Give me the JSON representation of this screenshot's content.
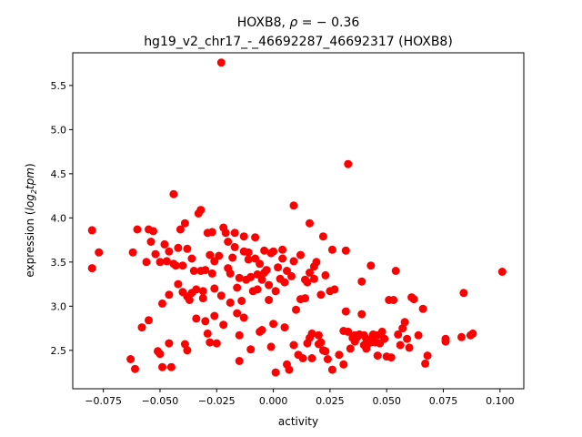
{
  "chart_data": {
    "type": "scatter",
    "title_line1_prefix": "HOXB8, ",
    "title_line1_rho": "ρ",
    "title_line1_suffix": " = − 0.36",
    "title_line2": "hg19_v2_chr17_-_46692287_46692317 (HOXB8)",
    "xlabel": "activity",
    "ylabel_prefix": "expression (",
    "ylabel_log": "log",
    "ylabel_sub": "2",
    "ylabel_tpm": "tpm",
    "ylabel_suffix": ")",
    "xlim": [
      -0.0885,
      0.1105
    ],
    "ylim": [
      2.065,
      5.87
    ],
    "xticks": [
      -0.075,
      -0.05,
      -0.025,
      0.0,
      0.025,
      0.05,
      0.075,
      0.1
    ],
    "xtick_labels": [
      "−0.075",
      "−0.050",
      "−0.025",
      "0.000",
      "0.025",
      "0.050",
      "0.075",
      "0.100"
    ],
    "yticks": [
      2.5,
      3.0,
      3.5,
      4.0,
      4.5,
      5.0,
      5.5
    ],
    "ytick_labels": [
      "2.5",
      "3.0",
      "3.5",
      "4.0",
      "4.5",
      "5.0",
      "5.5"
    ],
    "grid": false,
    "marker_color": "#ff0000",
    "points": [
      [
        -0.08,
        3.86
      ],
      [
        -0.08,
        3.43
      ],
      [
        -0.077,
        3.61
      ],
      [
        -0.063,
        2.4
      ],
      [
        -0.061,
        2.29
      ],
      [
        -0.062,
        3.61
      ],
      [
        -0.06,
        3.87
      ],
      [
        -0.058,
        2.76
      ],
      [
        -0.056,
        3.5
      ],
      [
        -0.055,
        2.84
      ],
      [
        -0.055,
        3.87
      ],
      [
        -0.054,
        3.73
      ],
      [
        -0.053,
        3.85
      ],
      [
        -0.052,
        3.59
      ],
      [
        -0.051,
        2.49
      ],
      [
        -0.05,
        2.46
      ],
      [
        -0.05,
        3.5
      ],
      [
        -0.049,
        2.31
      ],
      [
        -0.049,
        3.03
      ],
      [
        -0.048,
        3.7
      ],
      [
        -0.047,
        3.51
      ],
      [
        -0.046,
        3.62
      ],
      [
        -0.046,
        3.13
      ],
      [
        -0.046,
        2.58
      ],
      [
        -0.045,
        2.31
      ],
      [
        -0.044,
        4.27
      ],
      [
        -0.044,
        3.48
      ],
      [
        -0.043,
        3.46
      ],
      [
        -0.042,
        3.25
      ],
      [
        -0.042,
        3.66
      ],
      [
        -0.041,
        3.87
      ],
      [
        -0.04,
        3.16
      ],
      [
        -0.04,
        3.46
      ],
      [
        -0.039,
        3.94
      ],
      [
        -0.039,
        2.57
      ],
      [
        -0.038,
        2.5
      ],
      [
        -0.038,
        3.11
      ],
      [
        -0.038,
        3.65
      ],
      [
        -0.037,
        3.07
      ],
      [
        -0.036,
        3.54
      ],
      [
        -0.036,
        3.15
      ],
      [
        -0.035,
        3.4
      ],
      [
        -0.034,
        2.86
      ],
      [
        -0.034,
        3.19
      ],
      [
        -0.033,
        4.05
      ],
      [
        -0.032,
        4.09
      ],
      [
        -0.032,
        3.4
      ],
      [
        -0.031,
        3.17
      ],
      [
        -0.031,
        3.09
      ],
      [
        -0.03,
        3.41
      ],
      [
        -0.03,
        2.83
      ],
      [
        -0.029,
        3.83
      ],
      [
        -0.029,
        2.69
      ],
      [
        -0.028,
        3.58
      ],
      [
        -0.028,
        2.59
      ],
      [
        -0.027,
        3.84
      ],
      [
        -0.027,
        3.37
      ],
      [
        -0.026,
        3.2
      ],
      [
        -0.026,
        3.51
      ],
      [
        -0.026,
        2.89
      ],
      [
        -0.025,
        2.58
      ],
      [
        -0.024,
        3.57
      ],
      [
        -0.023,
        5.76
      ],
      [
        -0.023,
        3.12
      ],
      [
        -0.022,
        3.89
      ],
      [
        -0.022,
        2.79
      ],
      [
        -0.021,
        3.83
      ],
      [
        -0.02,
        3.43
      ],
      [
        -0.02,
        3.73
      ],
      [
        -0.019,
        3.37
      ],
      [
        -0.019,
        3.04
      ],
      [
        -0.018,
        3.55
      ],
      [
        -0.017,
        3.83
      ],
      [
        -0.017,
        3.67
      ],
      [
        -0.016,
        3.21
      ],
      [
        -0.016,
        2.92
      ],
      [
        -0.015,
        3.32
      ],
      [
        -0.015,
        2.67
      ],
      [
        -0.015,
        2.38
      ],
      [
        -0.014,
        3.06
      ],
      [
        -0.013,
        3.79
      ],
      [
        -0.013,
        3.62
      ],
      [
        -0.013,
        2.87
      ],
      [
        -0.012,
        3.3
      ],
      [
        -0.011,
        3.53
      ],
      [
        -0.011,
        3.61
      ],
      [
        -0.01,
        2.51
      ],
      [
        -0.01,
        3.33
      ],
      [
        -0.009,
        3.17
      ],
      [
        -0.008,
        3.78
      ],
      [
        -0.008,
        3.54
      ],
      [
        -0.007,
        3.19
      ],
      [
        -0.007,
        3.36
      ],
      [
        -0.006,
        2.71
      ],
      [
        -0.006,
        3.48
      ],
      [
        -0.005,
        2.73
      ],
      [
        -0.005,
        3.3
      ],
      [
        -0.004,
        3.63
      ],
      [
        -0.004,
        3.38
      ],
      [
        -0.003,
        3.41
      ],
      [
        -0.002,
        3.24
      ],
      [
        -0.002,
        3.07
      ],
      [
        -0.001,
        2.54
      ],
      [
        -0.001,
        3.6
      ],
      [
        0.0,
        3.62
      ],
      [
        0.0,
        2.8
      ],
      [
        0.001,
        2.25
      ],
      [
        0.001,
        3.17
      ],
      [
        0.002,
        3.44
      ],
      [
        0.003,
        3.31
      ],
      [
        0.004,
        3.64
      ],
      [
        0.004,
        3.54
      ],
      [
        0.005,
        2.76
      ],
      [
        0.005,
        3.27
      ],
      [
        0.006,
        3.4
      ],
      [
        0.006,
        2.34
      ],
      [
        0.007,
        2.28
      ],
      [
        0.008,
        3.34
      ],
      [
        0.009,
        3.51
      ],
      [
        0.009,
        2.56
      ],
      [
        0.009,
        4.14
      ],
      [
        0.01,
        2.96
      ],
      [
        0.011,
        2.45
      ],
      [
        0.012,
        3.58
      ],
      [
        0.012,
        3.08
      ],
      [
        0.013,
        2.41
      ],
      [
        0.014,
        3.09
      ],
      [
        0.014,
        3.3
      ],
      [
        0.015,
        2.58
      ],
      [
        0.015,
        3.27
      ],
      [
        0.016,
        2.64
      ],
      [
        0.016,
        3.94
      ],
      [
        0.016,
        3.38
      ],
      [
        0.017,
        2.69
      ],
      [
        0.017,
        2.41
      ],
      [
        0.018,
        3.45
      ],
      [
        0.018,
        3.31
      ],
      [
        0.019,
        3.5
      ],
      [
        0.02,
        2.57
      ],
      [
        0.02,
        2.67
      ],
      [
        0.021,
        3.13
      ],
      [
        0.021,
        2.59
      ],
      [
        0.022,
        3.79
      ],
      [
        0.022,
        2.5
      ],
      [
        0.023,
        3.35
      ],
      [
        0.023,
        2.49
      ],
      [
        0.024,
        2.4
      ],
      [
        0.025,
        3.17
      ],
      [
        0.026,
        2.28
      ],
      [
        0.026,
        3.64
      ],
      [
        0.027,
        3.19
      ],
      [
        0.029,
        2.45
      ],
      [
        0.031,
        2.72
      ],
      [
        0.031,
        2.34
      ],
      [
        0.032,
        2.94
      ],
      [
        0.032,
        3.63
      ],
      [
        0.033,
        4.61
      ],
      [
        0.033,
        2.71
      ],
      [
        0.034,
        2.52
      ],
      [
        0.035,
        2.64
      ],
      [
        0.036,
        2.67
      ],
      [
        0.036,
        2.6
      ],
      [
        0.037,
        2.65
      ],
      [
        0.038,
        2.68
      ],
      [
        0.039,
        2.91
      ],
      [
        0.039,
        3.28
      ],
      [
        0.04,
        2.56
      ],
      [
        0.04,
        2.67
      ],
      [
        0.041,
        2.63
      ],
      [
        0.041,
        2.52
      ],
      [
        0.042,
        2.58
      ],
      [
        0.043,
        3.46
      ],
      [
        0.043,
        2.59
      ],
      [
        0.044,
        2.63
      ],
      [
        0.044,
        2.68
      ],
      [
        0.045,
        2.59
      ],
      [
        0.046,
        2.44
      ],
      [
        0.046,
        2.67
      ],
      [
        0.047,
        2.58
      ],
      [
        0.048,
        2.71
      ],
      [
        0.049,
        2.63
      ],
      [
        0.05,
        2.43
      ],
      [
        0.051,
        3.07
      ],
      [
        0.052,
        2.42
      ],
      [
        0.053,
        3.07
      ],
      [
        0.054,
        3.4
      ],
      [
        0.055,
        2.68
      ],
      [
        0.056,
        2.56
      ],
      [
        0.057,
        2.75
      ],
      [
        0.058,
        2.82
      ],
      [
        0.059,
        2.63
      ],
      [
        0.06,
        2.53
      ],
      [
        0.061,
        3.1
      ],
      [
        0.062,
        3.08
      ],
      [
        0.064,
        2.67
      ],
      [
        0.066,
        2.97
      ],
      [
        0.067,
        2.35
      ],
      [
        0.068,
        2.44
      ],
      [
        0.076,
        2.6
      ],
      [
        0.076,
        2.63
      ],
      [
        0.083,
        2.65
      ],
      [
        0.084,
        3.15
      ],
      [
        0.087,
        2.67
      ],
      [
        0.088,
        2.69
      ],
      [
        0.101,
        3.39
      ]
    ]
  }
}
